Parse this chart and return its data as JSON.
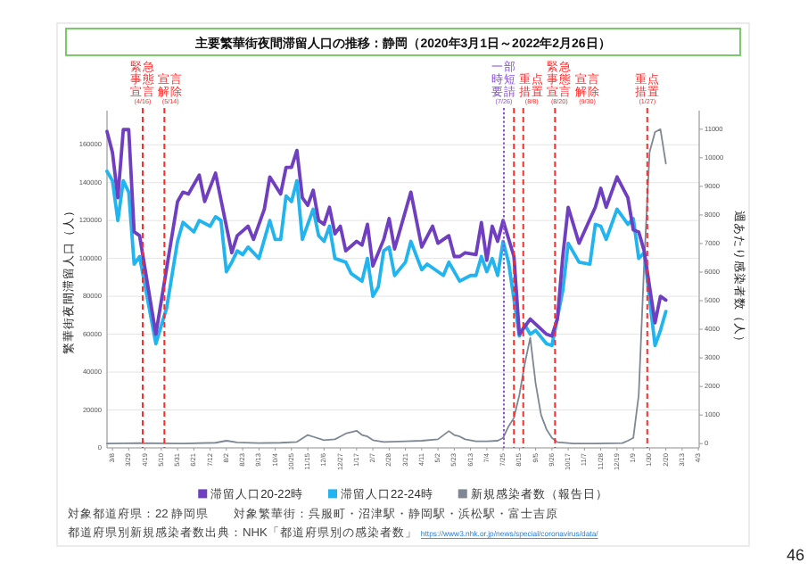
{
  "chart_data": {
    "type": "line",
    "title": "主要繁華街夜間滞留人口の推移：静岡（2020年3月1日～2022年2月26日）",
    "ylabel": "繁華街夜間滞留人口（人）",
    "y2label": "週あたり感染者数（人）",
    "xlim": [
      "2020-03-01",
      "2022-04-04"
    ],
    "xticks": [
      {
        "value": "2020-03-08",
        "label": "3/8"
      },
      {
        "value": "2020-03-29",
        "label": "3/29"
      },
      {
        "value": "2020-04-19",
        "label": "4/19"
      },
      {
        "value": "2020-05-10",
        "label": "5/10"
      },
      {
        "value": "2020-05-31",
        "label": "5/31"
      },
      {
        "value": "2020-06-21",
        "label": "6/21"
      },
      {
        "value": "2020-07-12",
        "label": "7/12"
      },
      {
        "value": "2020-08-02",
        "label": "8/2"
      },
      {
        "value": "2020-08-23",
        "label": "8/23"
      },
      {
        "value": "2020-09-13",
        "label": "9/13"
      },
      {
        "value": "2020-10-04",
        "label": "10/4"
      },
      {
        "value": "2020-10-25",
        "label": "10/25"
      },
      {
        "value": "2020-11-15",
        "label": "11/15"
      },
      {
        "value": "2020-12-06",
        "label": "12/6"
      },
      {
        "value": "2020-12-27",
        "label": "12/27"
      },
      {
        "value": "2021-01-17",
        "label": "1/17"
      },
      {
        "value": "2021-02-07",
        "label": "2/7"
      },
      {
        "value": "2021-02-28",
        "label": "2/28"
      },
      {
        "value": "2021-03-21",
        "label": "3/21"
      },
      {
        "value": "2021-04-11",
        "label": "4/11"
      },
      {
        "value": "2021-05-02",
        "label": "5/2"
      },
      {
        "value": "2021-05-23",
        "label": "5/23"
      },
      {
        "value": "2021-06-13",
        "label": "6/13"
      },
      {
        "value": "2021-07-04",
        "label": "7/4"
      },
      {
        "value": "2021-07-25",
        "label": "7/25"
      },
      {
        "value": "2021-08-15",
        "label": "8/15"
      },
      {
        "value": "2021-09-05",
        "label": "9/5"
      },
      {
        "value": "2021-09-26",
        "label": "9/26"
      },
      {
        "value": "2021-10-17",
        "label": "10/17"
      },
      {
        "value": "2021-11-07",
        "label": "11/7"
      },
      {
        "value": "2021-11-28",
        "label": "11/28"
      },
      {
        "value": "2021-12-19",
        "label": "12/19"
      },
      {
        "value": "2022-01-09",
        "label": "1/9"
      },
      {
        "value": "2022-01-30",
        "label": "1/30"
      },
      {
        "value": "2022-02-20",
        "label": "2/20"
      },
      {
        "value": "2022-03-13",
        "label": "3/13"
      },
      {
        "value": "2022-04-03",
        "label": "4/3"
      }
    ],
    "ylim": [
      0,
      178000
    ],
    "yticks": [
      0,
      20000,
      40000,
      60000,
      80000,
      100000,
      120000,
      140000,
      160000
    ],
    "y2lim": [
      -150,
      11650
    ],
    "y2ticks": [
      0,
      1000,
      2000,
      3000,
      4000,
      5000,
      6000,
      7000,
      8000,
      9000,
      10000,
      11000
    ],
    "grid": "y",
    "legend": "bottom",
    "series": [
      {
        "name": "滞留人口20-22時",
        "color": "#6f3fc0",
        "x": [
          "2020-03-01",
          "2020-03-08",
          "2020-03-15",
          "2020-03-22",
          "2020-03-29",
          "2020-04-05",
          "2020-04-12",
          "2020-05-03",
          "2020-05-31",
          "2020-06-07",
          "2020-06-14",
          "2020-06-28",
          "2020-07-05",
          "2020-07-19",
          "2020-08-09",
          "2020-08-16",
          "2020-08-30",
          "2020-09-06",
          "2020-09-20",
          "2020-09-27",
          "2020-10-11",
          "2020-10-18",
          "2020-10-25",
          "2020-11-01",
          "2020-11-08",
          "2020-11-15",
          "2020-11-22",
          "2020-11-29",
          "2020-12-06",
          "2020-12-13",
          "2020-12-20",
          "2020-12-27",
          "2021-01-03",
          "2021-01-17",
          "2021-01-24",
          "2021-01-31",
          "2021-02-07",
          "2021-02-21",
          "2021-02-28",
          "2021-03-07",
          "2021-03-28",
          "2021-04-11",
          "2021-04-25",
          "2021-05-02",
          "2021-05-16",
          "2021-05-23",
          "2021-05-30",
          "2021-06-06",
          "2021-06-20",
          "2021-06-27",
          "2021-07-04",
          "2021-07-11",
          "2021-07-18",
          "2021-07-25",
          "2021-08-08",
          "2021-08-15",
          "2021-08-29",
          "2021-09-19",
          "2021-09-26",
          "2021-10-03",
          "2021-10-10",
          "2021-10-17",
          "2021-10-31",
          "2021-11-21",
          "2021-11-28",
          "2021-12-05",
          "2021-12-19",
          "2022-01-02",
          "2022-01-09",
          "2022-01-16",
          "2022-01-23",
          "2022-02-06",
          "2022-02-13",
          "2022-02-20"
        ],
        "values": [
          167000,
          156000,
          132000,
          168000,
          168000,
          114000,
          112000,
          60000,
          130000,
          135000,
          134000,
          144000,
          130000,
          145000,
          103000,
          112000,
          117000,
          110000,
          126000,
          143000,
          134000,
          148000,
          148000,
          157000,
          132000,
          128000,
          136000,
          120000,
          118000,
          127000,
          113000,
          117000,
          104000,
          109000,
          107000,
          118000,
          96000,
          110000,
          121000,
          105000,
          135000,
          106000,
          117000,
          108000,
          112000,
          101000,
          101000,
          103000,
          102000,
          119000,
          99000,
          117000,
          109000,
          120000,
          101000,
          60000,
          68000,
          60000,
          59000,
          68000,
          101000,
          127000,
          108000,
          127000,
          137000,
          127000,
          143000,
          132000,
          115000,
          114000,
          104000,
          66000,
          80000,
          78000
        ]
      },
      {
        "name": "滞留人口22-24時",
        "color": "#22b4ee",
        "x": [
          "2020-03-01",
          "2020-03-08",
          "2020-03-15",
          "2020-03-22",
          "2020-03-29",
          "2020-04-05",
          "2020-04-12",
          "2020-05-03",
          "2020-05-17",
          "2020-05-31",
          "2020-06-07",
          "2020-06-21",
          "2020-06-28",
          "2020-07-12",
          "2020-07-19",
          "2020-07-26",
          "2020-08-02",
          "2020-08-09",
          "2020-08-16",
          "2020-08-23",
          "2020-08-30",
          "2020-09-13",
          "2020-09-27",
          "2020-10-04",
          "2020-10-11",
          "2020-10-18",
          "2020-10-25",
          "2020-11-01",
          "2020-11-08",
          "2020-11-15",
          "2020-11-22",
          "2020-11-29",
          "2020-12-06",
          "2020-12-13",
          "2020-12-20",
          "2021-01-03",
          "2021-01-10",
          "2021-01-24",
          "2021-01-31",
          "2021-02-07",
          "2021-02-14",
          "2021-02-21",
          "2021-02-28",
          "2021-03-07",
          "2021-03-21",
          "2021-03-28",
          "2021-04-11",
          "2021-04-18",
          "2021-05-09",
          "2021-05-16",
          "2021-05-30",
          "2021-06-13",
          "2021-06-20",
          "2021-06-27",
          "2021-07-04",
          "2021-07-11",
          "2021-07-18",
          "2021-07-25",
          "2021-08-01",
          "2021-08-15",
          "2021-08-22",
          "2021-08-29",
          "2021-09-05",
          "2021-09-19",
          "2021-09-26",
          "2021-10-10",
          "2021-10-17",
          "2021-10-31",
          "2021-11-14",
          "2021-11-21",
          "2021-11-28",
          "2021-12-05",
          "2021-12-19",
          "2022-01-02",
          "2022-01-09",
          "2022-01-16",
          "2022-01-23",
          "2022-02-06",
          "2022-02-13",
          "2022-02-20"
        ],
        "values": [
          146000,
          141000,
          120000,
          141000,
          135000,
          97000,
          101000,
          55000,
          74000,
          109000,
          119000,
          114000,
          120000,
          117000,
          122000,
          120000,
          93000,
          98000,
          104000,
          102000,
          106000,
          100000,
          120000,
          110000,
          110000,
          133000,
          130000,
          141000,
          110000,
          118000,
          126000,
          112000,
          109000,
          117000,
          100000,
          98000,
          92000,
          88000,
          100000,
          80000,
          85000,
          104000,
          106000,
          91000,
          98000,
          109000,
          94000,
          97000,
          91000,
          98000,
          88000,
          91000,
          91000,
          101000,
          93000,
          100000,
          91000,
          109000,
          98000,
          59000,
          65000,
          60000,
          62000,
          55000,
          54000,
          83000,
          108000,
          98000,
          97000,
          118000,
          117000,
          110000,
          126000,
          118000,
          121000,
          100000,
          103000,
          54000,
          62000,
          72000
        ]
      },
      {
        "name": "新規感染者数（報告日）",
        "color": "#7e8793",
        "axis": "y2",
        "x": [
          "2020-03-01",
          "2020-04-12",
          "2020-05-10",
          "2020-06-07",
          "2020-07-19",
          "2020-08-02",
          "2020-08-16",
          "2020-09-13",
          "2020-10-11",
          "2020-11-01",
          "2020-11-15",
          "2020-11-22",
          "2020-12-06",
          "2020-12-20",
          "2020-12-27",
          "2021-01-03",
          "2021-01-17",
          "2021-01-24",
          "2021-01-31",
          "2021-02-07",
          "2021-02-21",
          "2021-03-21",
          "2021-04-11",
          "2021-05-02",
          "2021-05-16",
          "2021-05-23",
          "2021-05-30",
          "2021-06-06",
          "2021-06-20",
          "2021-07-04",
          "2021-07-18",
          "2021-07-25",
          "2021-08-01",
          "2021-08-08",
          "2021-08-15",
          "2021-08-22",
          "2021-08-29",
          "2021-09-05",
          "2021-09-12",
          "2021-09-19",
          "2021-09-26",
          "2021-10-03",
          "2021-10-24",
          "2021-11-21",
          "2021-12-26",
          "2022-01-02",
          "2022-01-09",
          "2022-01-16",
          "2022-01-23",
          "2022-01-30",
          "2022-02-06",
          "2022-02-13",
          "2022-02-20"
        ],
        "values": [
          0,
          20,
          10,
          0,
          30,
          100,
          40,
          20,
          30,
          60,
          300,
          240,
          120,
          150,
          250,
          350,
          450,
          300,
          250,
          120,
          60,
          80,
          100,
          150,
          440,
          300,
          250,
          150,
          80,
          80,
          100,
          200,
          600,
          900,
          1700,
          2800,
          3700,
          2100,
          1000,
          500,
          200,
          50,
          0,
          0,
          20,
          100,
          200,
          1700,
          6300,
          10200,
          10900,
          11000,
          9800
        ]
      }
    ],
    "ref_lines": [
      {
        "axis": "x",
        "value": "2020-04-16",
        "label": "緊急事態宣言(4/16)",
        "color": "#ff2a2a",
        "line_style": "dashed"
      },
      {
        "axis": "x",
        "value": "2020-05-14",
        "label": "宣言解除(5/14)",
        "color": "#ff2a2a",
        "line_style": "dashed"
      },
      {
        "axis": "x",
        "value": "2021-07-26",
        "label": "一部時短要請(7/26)",
        "color": "#8a4fd8",
        "line_style": "dotted"
      },
      {
        "axis": "x",
        "value": "2021-08-08",
        "label": "重点措置(8/8)",
        "color": "#ff2a2a",
        "line_style": "dashed"
      },
      {
        "axis": "x",
        "value": "2021-08-20",
        "label": "緊急事態宣言(8/20)",
        "color": "#ff2a2a",
        "line_style": "dashed"
      },
      {
        "axis": "x",
        "value": "2021-09-30",
        "label": "宣言解除(9/30)",
        "color": "#ff2a2a",
        "line_style": "dashed"
      },
      {
        "axis": "x",
        "value": "2022-01-27",
        "label": "重点措置(1/27)",
        "color": "#ff2a2a",
        "line_style": "dashed"
      }
    ],
    "annotations": [
      "対象都道府県：22 静岡県",
      "対象繁華街：呉服町・沼津駅・静岡駅・浜松駅・富士吉原",
      "都道府県別新規感染者数出典：NHK「都道府県別の感染者数」",
      "https://www3.nhk.or.jp/news/special/coronavirus/data/",
      "46"
    ]
  }
}
